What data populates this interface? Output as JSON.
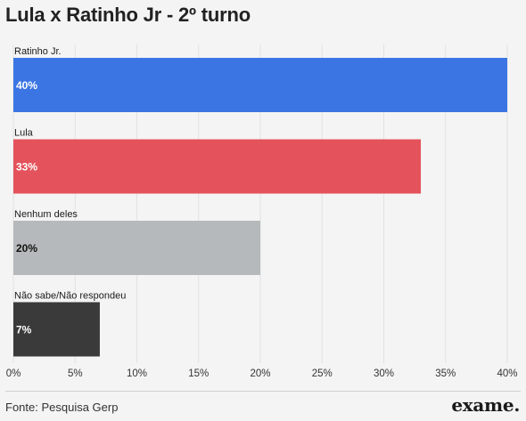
{
  "chart_data": {
    "type": "bar",
    "orientation": "horizontal",
    "title": "Lula x Ratinho Jr - 2º turno",
    "categories": [
      "Ratinho Jr.",
      "Lula",
      "Nenhum deles",
      "Não sabe/Não respondeu"
    ],
    "values": [
      40,
      33,
      20,
      7
    ],
    "data_labels": [
      "40%",
      "33%",
      "20%",
      "7%"
    ],
    "colors": [
      "#3b75e3",
      "#e4525b",
      "#b6b9bb",
      "#3a3a3a"
    ],
    "label_colors": [
      "#ffffff",
      "#ffffff",
      "#111111",
      "#ffffff"
    ],
    "xlim": [
      0,
      40
    ],
    "xticks": [
      0,
      5,
      10,
      15,
      20,
      25,
      30,
      35,
      40
    ],
    "xtick_labels": [
      "0%",
      "5%",
      "10%",
      "15%",
      "20%",
      "25%",
      "30%",
      "35%",
      "40%"
    ],
    "grid": "vertical",
    "xlabel": "",
    "ylabel": ""
  },
  "footer": {
    "source": "Fonte: Pesquisa Gerp",
    "brand": "exame."
  }
}
